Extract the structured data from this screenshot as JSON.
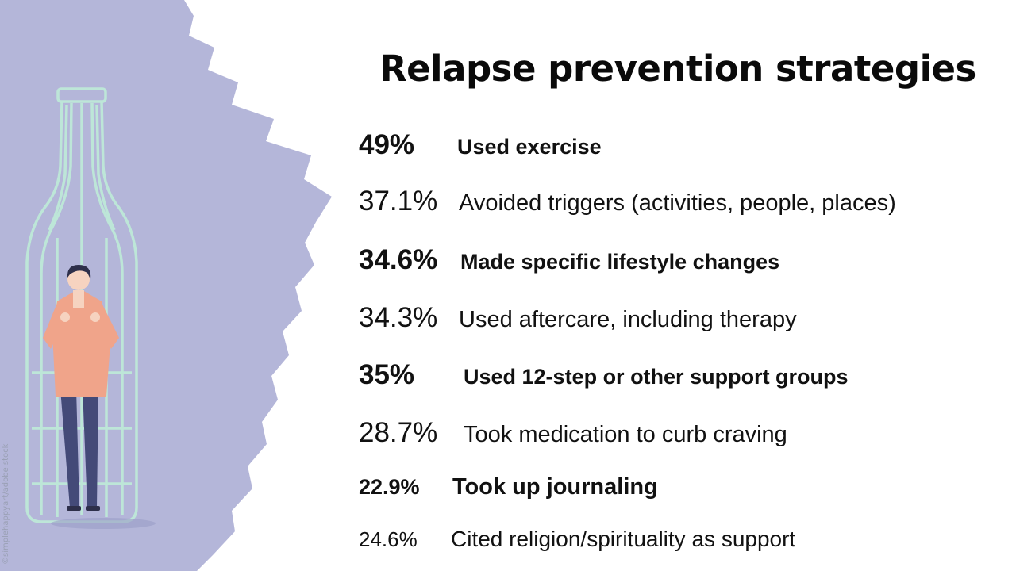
{
  "title": "Relapse prevention strategies",
  "credit": "©simplehappyart/adobe stock",
  "colors": {
    "brush": "#b4b6d9",
    "bottle_outline": "#bde6d8",
    "shirt": "#f0a48a",
    "pants": "#444a78",
    "hair": "#2e2f4a",
    "skin": "#f6d3c0"
  },
  "icons": [
    "bottle-icon",
    "person-icon"
  ],
  "strategies": [
    {
      "percent": "49%",
      "label": "Used exercise"
    },
    {
      "percent": "37.1%",
      "label": "Avoided triggers (activities, people, places)"
    },
    {
      "percent": "34.6%",
      "label": "Made specific lifestyle changes"
    },
    {
      "percent": "34.3%",
      "label": "Used aftercare, including therapy"
    },
    {
      "percent": "35%",
      "label": "Used 12-step or other support groups"
    },
    {
      "percent": "28.7%",
      "label": "Took medication to curb craving"
    },
    {
      "percent": "22.9%",
      "label": "Took up journaling"
    },
    {
      "percent": "24.6%",
      "label": "Cited religion/spirituality as support"
    }
  ]
}
